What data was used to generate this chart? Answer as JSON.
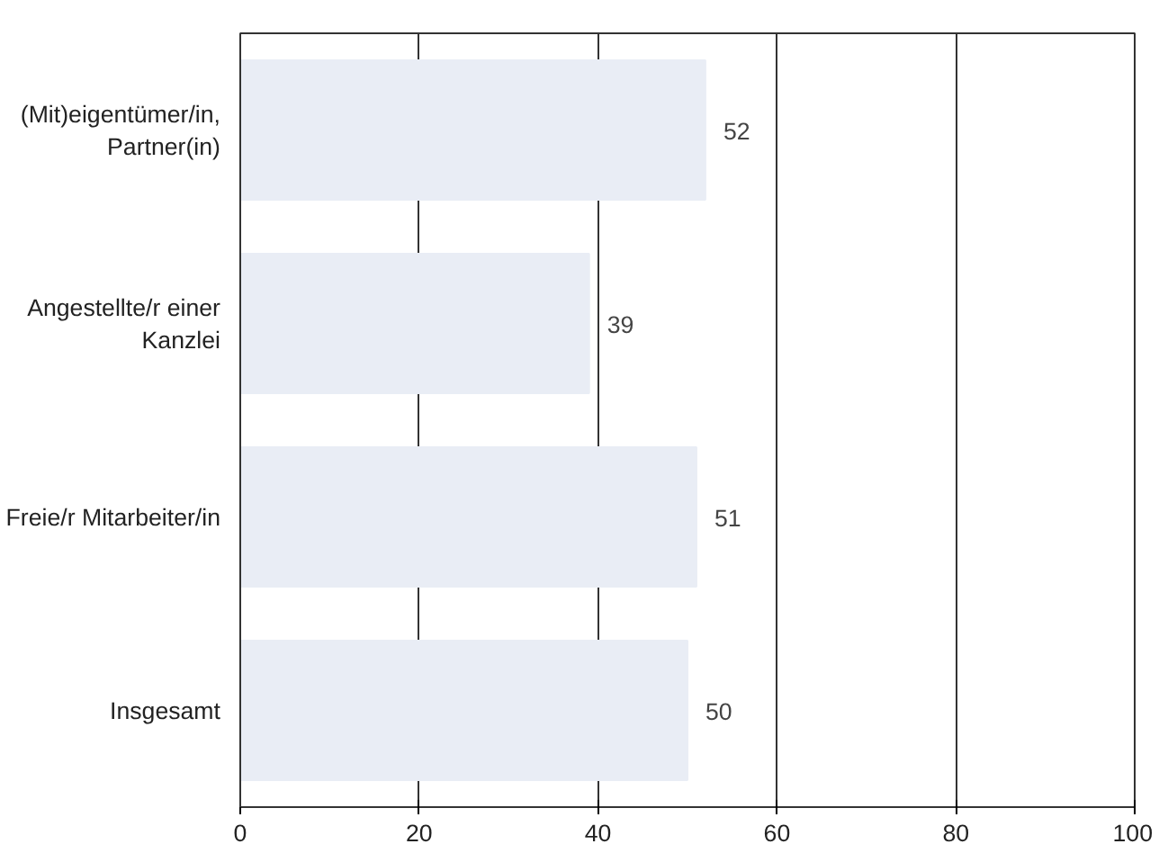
{
  "chart_data": {
    "type": "bar",
    "orientation": "horizontal",
    "categories": [
      "(Mit)eigentümer/in,\nPartner(in)",
      "Angestellte/r einer\nKanzlei",
      "Freie/r Mitarbeiter/in",
      "Insgesamt"
    ],
    "values": [
      52,
      39,
      51,
      50
    ],
    "color": "#e9edf5",
    "data_labels": true,
    "xlim": [
      0,
      100
    ],
    "xticks": [
      0,
      20,
      40,
      60,
      80,
      100
    ],
    "grid": "x"
  }
}
